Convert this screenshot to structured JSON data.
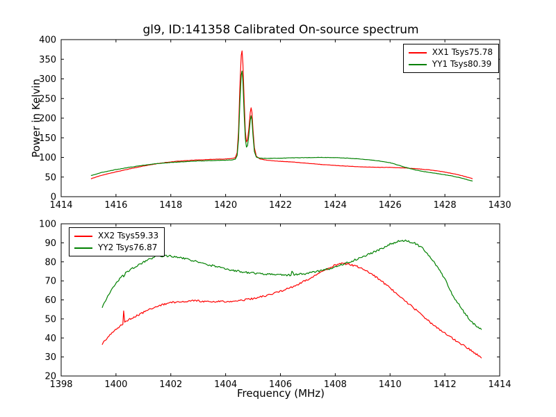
{
  "window": {
    "background": "#ffffff",
    "text_color": "#000000"
  },
  "figure_title": "gl9, ID:141358 Calibrated On-source spectrum",
  "chart_data": [
    {
      "id": "top-spectrum",
      "type": "line",
      "xlabel": "",
      "ylabel": "Power in Kelvin",
      "xlim": [
        1414,
        1430
      ],
      "ylim": [
        0,
        400
      ],
      "xticks": [
        1414,
        1416,
        1418,
        1420,
        1422,
        1424,
        1426,
        1428,
        1430
      ],
      "yticks": [
        0,
        50,
        100,
        150,
        200,
        250,
        300,
        350,
        400
      ],
      "grid": false,
      "legend_position": "upper-right",
      "series": [
        {
          "name": "XX1 Tsys75.78",
          "color": "#ff0000",
          "noise": 0.4,
          "points": [
            [
              1415.1,
              46
            ],
            [
              1415.5,
              55
            ],
            [
              1416.0,
              63
            ],
            [
              1416.5,
              71
            ],
            [
              1417.0,
              78
            ],
            [
              1417.4,
              83
            ],
            [
              1417.8,
              87
            ],
            [
              1418.2,
              90
            ],
            [
              1418.6,
              92
            ],
            [
              1419.0,
              93.5
            ],
            [
              1419.5,
              95
            ],
            [
              1420.0,
              96
            ],
            [
              1420.2,
              97
            ],
            [
              1420.35,
              99
            ],
            [
              1420.42,
              112
            ],
            [
              1420.47,
              165
            ],
            [
              1420.52,
              280
            ],
            [
              1420.57,
              360
            ],
            [
              1420.6,
              371
            ],
            [
              1420.63,
              340
            ],
            [
              1420.68,
              240
            ],
            [
              1420.72,
              165
            ],
            [
              1420.76,
              140
            ],
            [
              1420.8,
              145
            ],
            [
              1420.85,
              175
            ],
            [
              1420.9,
              215
            ],
            [
              1420.93,
              226
            ],
            [
              1420.96,
              215
            ],
            [
              1421.0,
              170
            ],
            [
              1421.05,
              125
            ],
            [
              1421.12,
              103
            ],
            [
              1421.25,
              96
            ],
            [
              1421.5,
              93
            ],
            [
              1422.0,
              90
            ],
            [
              1422.5,
              88
            ],
            [
              1423.0,
              85
            ],
            [
              1423.5,
              82
            ],
            [
              1424.0,
              79.5
            ],
            [
              1424.5,
              77.5
            ],
            [
              1425.0,
              76
            ],
            [
              1425.5,
              75
            ],
            [
              1426.0,
              74.5
            ],
            [
              1426.6,
              73
            ],
            [
              1427.0,
              71
            ],
            [
              1427.4,
              68.5
            ],
            [
              1427.8,
              65
            ],
            [
              1428.2,
              60
            ],
            [
              1428.6,
              54
            ],
            [
              1429.0,
              46
            ]
          ]
        },
        {
          "name": "YY1 Tsys80.39",
          "color": "#008000",
          "noise": 0.4,
          "points": [
            [
              1415.1,
              54
            ],
            [
              1415.5,
              62
            ],
            [
              1416.0,
              69
            ],
            [
              1416.5,
              75
            ],
            [
              1417.0,
              80
            ],
            [
              1417.4,
              83.5
            ],
            [
              1417.8,
              86
            ],
            [
              1418.2,
              88
            ],
            [
              1418.6,
              89.5
            ],
            [
              1419.0,
              91
            ],
            [
              1419.5,
              92
            ],
            [
              1420.0,
              93
            ],
            [
              1420.2,
              93.5
            ],
            [
              1420.35,
              95
            ],
            [
              1420.42,
              105
            ],
            [
              1420.47,
              145
            ],
            [
              1420.52,
              240
            ],
            [
              1420.57,
              310
            ],
            [
              1420.6,
              320
            ],
            [
              1420.63,
              295
            ],
            [
              1420.68,
              205
            ],
            [
              1420.72,
              148
            ],
            [
              1420.76,
              126
            ],
            [
              1420.8,
              130
            ],
            [
              1420.85,
              158
            ],
            [
              1420.9,
              195
            ],
            [
              1420.93,
              206
            ],
            [
              1420.96,
              196
            ],
            [
              1421.0,
              155
            ],
            [
              1421.05,
              115
            ],
            [
              1421.12,
              101
            ],
            [
              1421.25,
              98
            ],
            [
              1421.5,
              97.5
            ],
            [
              1422.0,
              98
            ],
            [
              1422.5,
              99
            ],
            [
              1423.0,
              99.5
            ],
            [
              1423.5,
              100
            ],
            [
              1424.0,
              99.5
            ],
            [
              1424.5,
              98
            ],
            [
              1425.0,
              95.5
            ],
            [
              1425.5,
              92
            ],
            [
              1426.0,
              86.5
            ],
            [
              1426.6,
              74
            ],
            [
              1427.0,
              67
            ],
            [
              1427.4,
              62
            ],
            [
              1427.8,
              58
            ],
            [
              1428.2,
              53.5
            ],
            [
              1428.6,
              47.5
            ],
            [
              1429.0,
              40
            ]
          ]
        }
      ]
    },
    {
      "id": "bottom-spectrum",
      "type": "line",
      "xlabel": "Frequency (MHz)",
      "ylabel": "",
      "xlim": [
        1398,
        1414
      ],
      "ylim": [
        20,
        100
      ],
      "xticks": [
        1398,
        1400,
        1402,
        1404,
        1406,
        1408,
        1410,
        1412,
        1414
      ],
      "yticks": [
        20,
        30,
        40,
        50,
        60,
        70,
        80,
        90,
        100
      ],
      "grid": false,
      "legend_position": "upper-left",
      "series": [
        {
          "name": "XX2 Tsys59.33",
          "color": "#ff0000",
          "noise": 0.5,
          "points": [
            [
              1399.5,
              37
            ],
            [
              1399.7,
              40.5
            ],
            [
              1399.9,
              43.5
            ],
            [
              1400.1,
              45.5
            ],
            [
              1400.25,
              47.3
            ],
            [
              1400.28,
              54.5
            ],
            [
              1400.32,
              48
            ],
            [
              1400.5,
              49.8
            ],
            [
              1400.8,
              52
            ],
            [
              1401.2,
              54.8
            ],
            [
              1401.6,
              57
            ],
            [
              1402.0,
              58.6
            ],
            [
              1402.4,
              59.3
            ],
            [
              1402.8,
              59.5
            ],
            [
              1403.2,
              59.3
            ],
            [
              1403.6,
              59.1
            ],
            [
              1404.0,
              59.2
            ],
            [
              1404.4,
              59.5
            ],
            [
              1404.8,
              60.2
            ],
            [
              1405.2,
              61.3
            ],
            [
              1405.7,
              63
            ],
            [
              1406.1,
              65
            ],
            [
              1406.5,
              67.3
            ],
            [
              1406.9,
              70
            ],
            [
              1407.3,
              73
            ],
            [
              1407.7,
              76
            ],
            [
              1408.0,
              78.3
            ],
            [
              1408.2,
              79.2
            ],
            [
              1408.5,
              78.8
            ],
            [
              1408.8,
              77.5
            ],
            [
              1409.1,
              75.5
            ],
            [
              1409.5,
              72
            ],
            [
              1409.9,
              67.5
            ],
            [
              1410.3,
              62.5
            ],
            [
              1410.8,
              56.5
            ],
            [
              1411.2,
              51.5
            ],
            [
              1411.6,
              46.5
            ],
            [
              1412.0,
              42.5
            ],
            [
              1412.4,
              38.5
            ],
            [
              1412.8,
              35
            ],
            [
              1413.1,
              32
            ],
            [
              1413.33,
              29.5
            ]
          ]
        },
        {
          "name": "YY2 Tsys76.87",
          "color": "#008000",
          "noise": 0.5,
          "points": [
            [
              1399.5,
              56.5
            ],
            [
              1399.7,
              62
            ],
            [
              1399.9,
              67
            ],
            [
              1400.1,
              70.5
            ],
            [
              1400.25,
              72.8
            ],
            [
              1400.28,
              71.8
            ],
            [
              1400.35,
              74
            ],
            [
              1400.6,
              76.5
            ],
            [
              1400.9,
              79
            ],
            [
              1401.2,
              81.5
            ],
            [
              1401.5,
              82.8
            ],
            [
              1401.8,
              83.2
            ],
            [
              1402.1,
              82.8
            ],
            [
              1402.5,
              81.7
            ],
            [
              1402.9,
              80.3
            ],
            [
              1403.3,
              78.8
            ],
            [
              1403.7,
              77.3
            ],
            [
              1404.1,
              76
            ],
            [
              1404.5,
              75
            ],
            [
              1404.9,
              74.2
            ],
            [
              1405.3,
              73.6
            ],
            [
              1405.8,
              73.2
            ],
            [
              1406.2,
              73
            ],
            [
              1406.38,
              73.1
            ],
            [
              1406.42,
              74.8
            ],
            [
              1406.5,
              73.2
            ],
            [
              1406.9,
              73.8
            ],
            [
              1407.3,
              74.8
            ],
            [
              1407.7,
              76
            ],
            [
              1408.1,
              77.8
            ],
            [
              1408.5,
              79.8
            ],
            [
              1408.9,
              82
            ],
            [
              1409.3,
              84.5
            ],
            [
              1409.7,
              87
            ],
            [
              1410.0,
              89.3
            ],
            [
              1410.3,
              90.8
            ],
            [
              1410.6,
              91.2
            ],
            [
              1410.9,
              89.8
            ],
            [
              1411.2,
              87
            ],
            [
              1411.6,
              80
            ],
            [
              1412.0,
              71
            ],
            [
              1412.3,
              62
            ],
            [
              1412.7,
              53.5
            ],
            [
              1413.0,
              48
            ],
            [
              1413.33,
              44.5
            ]
          ]
        }
      ]
    }
  ]
}
